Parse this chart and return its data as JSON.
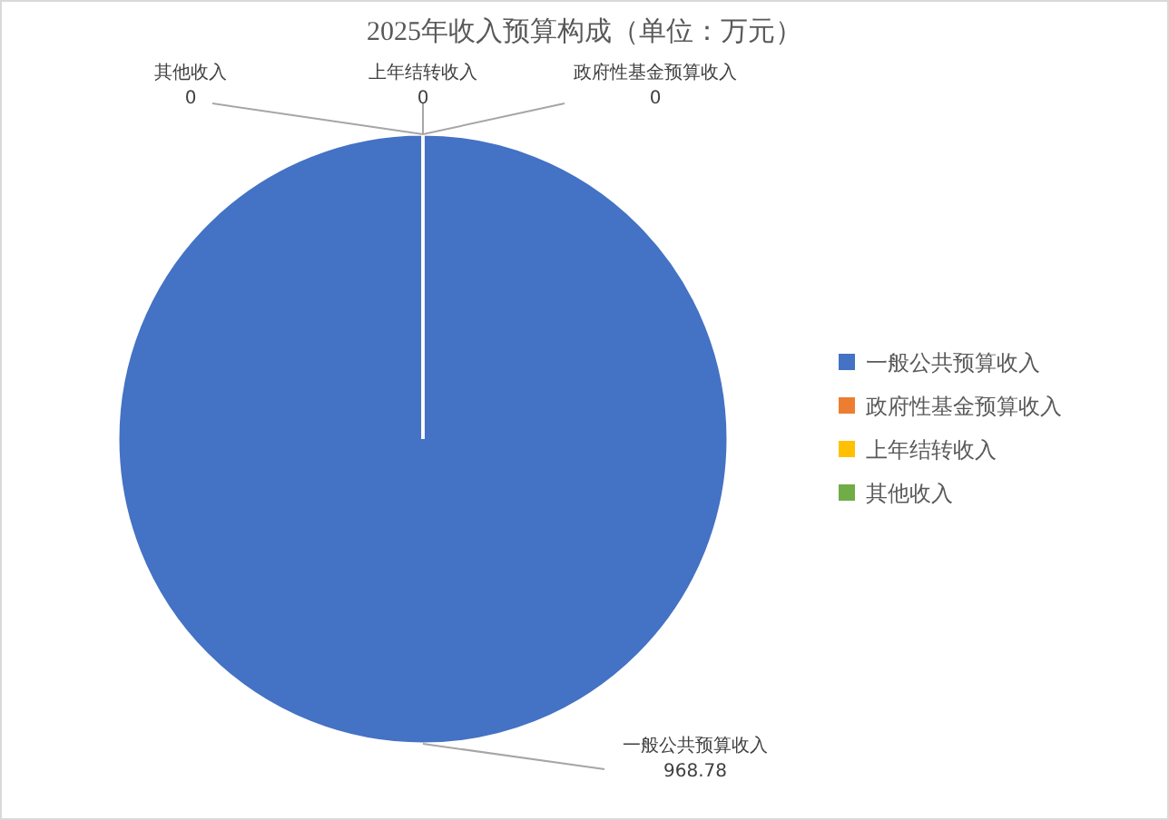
{
  "chart_data": {
    "type": "pie",
    "title": "2025年收入预算构成（单位：万元）",
    "categories": [
      "一般公共预算收入",
      "政府性基金预算收入",
      "上年结转收入",
      "其他收入"
    ],
    "values": [
      968.78,
      0,
      0,
      0
    ],
    "colors": [
      "#4472c4",
      "#ed7d31",
      "#ffc000",
      "#70ad47"
    ],
    "value_labels": [
      "968.78",
      "0",
      "0",
      "0"
    ],
    "legend": "right"
  }
}
